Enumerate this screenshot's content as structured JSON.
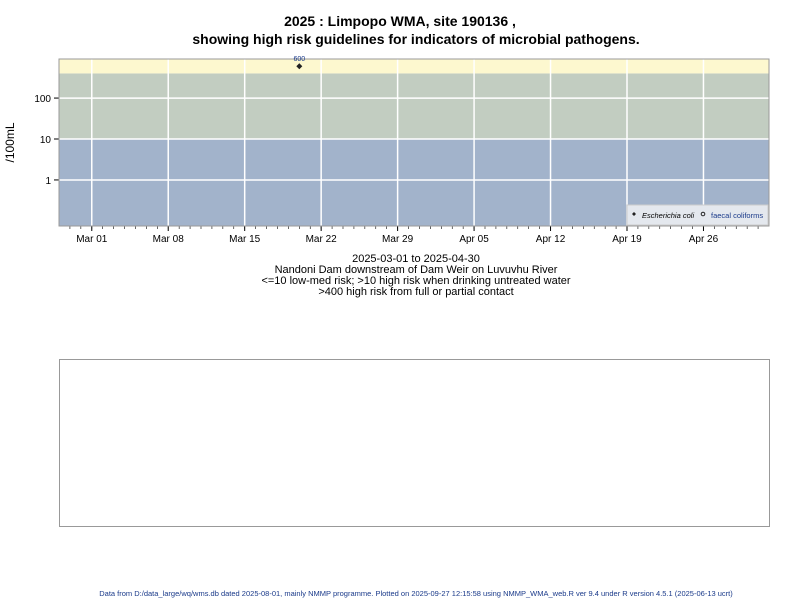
{
  "title_line1": "2025 : Limpopo WMA, site 190136 ,",
  "title_line2": "showing high risk guidelines for indicators of microbial pathogens.",
  "subtitle": [
    "2025-03-01 to 2025-04-30",
    "Nandoni Dam downstream of Dam Weir on Luvuvhu River",
    "<=10 low-med risk; >10 high risk when drinking untreated water",
    ">400 high risk from full or partial contact"
  ],
  "footer": "Data from D:/data_large/wq/wms.db dated 2025-08-01, mainly NMMP programme. Plotted on 2025-09-27 12:15:58 using NMMP_WMA_web.R ver 9.4 under R version 4.5.1 (2025-06-13 ucrt)",
  "chart_data": {
    "type": "scatter",
    "ylabel": "/100mL",
    "y_scale": "log",
    "ylim": [
      0.075,
      900
    ],
    "xlim": [
      "2025-02-26",
      "2025-05-02"
    ],
    "x_ticks": [
      "Mar 01",
      "Mar 08",
      "Mar 15",
      "Mar 22",
      "Mar 29",
      "Apr 05",
      "Apr 12",
      "Apr 19",
      "Apr 26"
    ],
    "y_ticks": [
      "1",
      "10",
      "100"
    ],
    "bands": [
      {
        "from": 0.075,
        "to": 10,
        "color": "#a2b3cb"
      },
      {
        "from": 10,
        "to": 400,
        "color": "#c2cdc1"
      },
      {
        "from": 400,
        "to": 900,
        "color": "#fdf8cf"
      }
    ],
    "grid": true,
    "legend_placement": "bottom-right",
    "series": [
      {
        "name": "Escherichia coli",
        "marker": "filled-diamond",
        "points": [
          {
            "date": "2025-03-20",
            "value": 600,
            "label": "600"
          }
        ]
      },
      {
        "name": "faecal coliforms",
        "marker": "open-circle",
        "points": []
      }
    ]
  }
}
